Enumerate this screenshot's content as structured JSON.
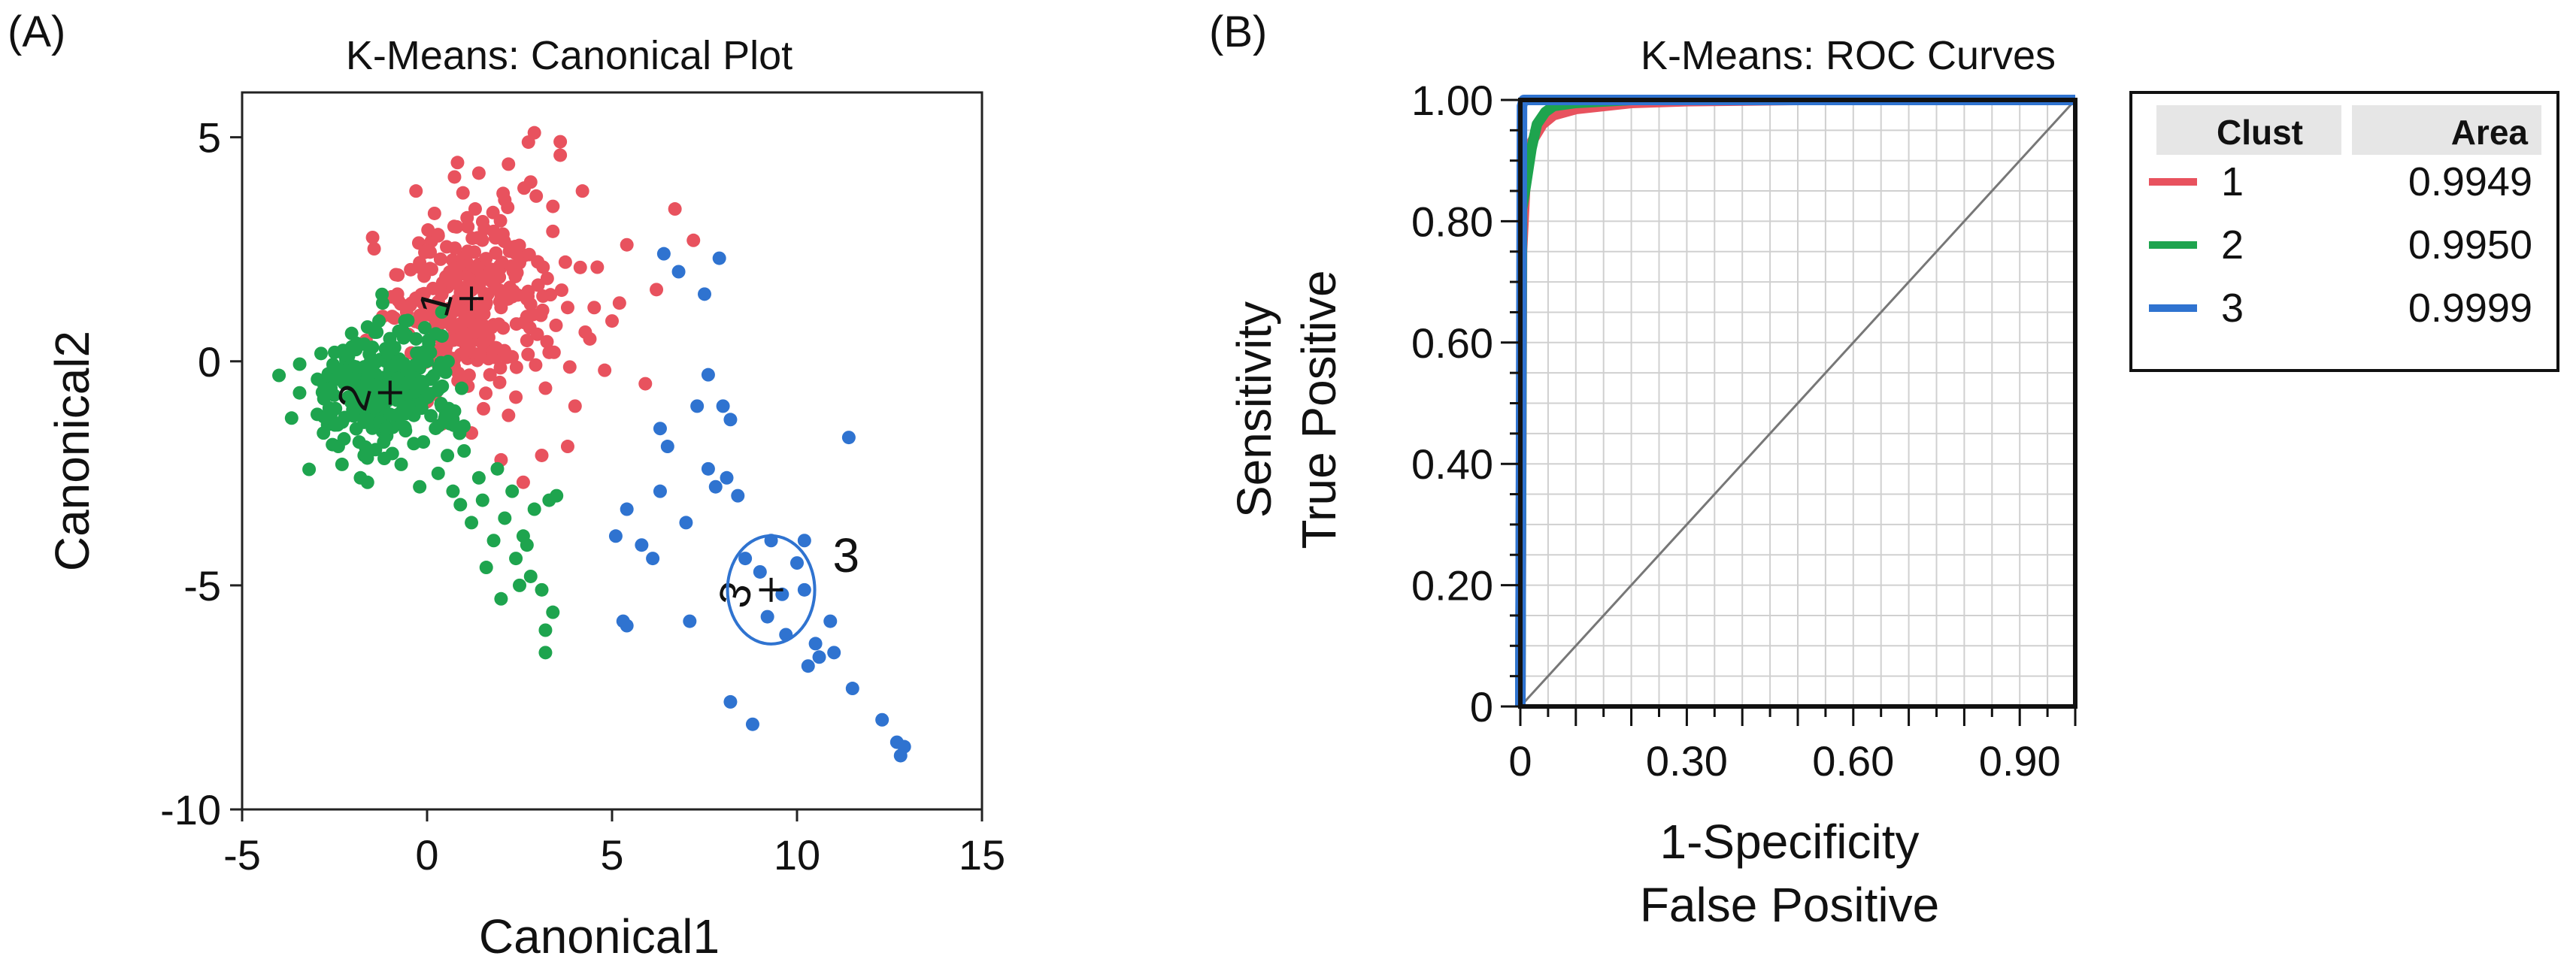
{
  "panels": {
    "a_label": "(A)",
    "b_label": "(B)",
    "label_color": "#1a2fa8"
  },
  "colors": {
    "cluster1": "#e8525e",
    "cluster2": "#1ea44e",
    "cluster3": "#2f73d0",
    "diagonal": "#777777"
  },
  "chart_data": [
    {
      "type": "scatter",
      "title": "K-Means: Canonical Plot",
      "xlabel": "Canonical1",
      "ylabel": "Canonical2",
      "xlim": [
        -5,
        15
      ],
      "ylim": [
        -10,
        6
      ],
      "xticks": [
        "-5",
        "0",
        "5",
        "10",
        "15"
      ],
      "yticks": [
        "5",
        "0",
        "-5",
        "-10"
      ],
      "grid": false,
      "series": [
        {
          "cluster": "1",
          "color": "#e8525e",
          "centroid": [
            1.2,
            1.4
          ],
          "points": [
            [
              -1.2,
              1.0
            ],
            [
              -0.8,
              1.5
            ],
            [
              -0.5,
              0.6
            ],
            [
              -0.2,
              2.2
            ],
            [
              0.1,
              1.2
            ],
            [
              0.3,
              2.8
            ],
            [
              0.5,
              0.2
            ],
            [
              0.6,
              1.8
            ],
            [
              0.8,
              3.0
            ],
            [
              1.0,
              0.9
            ],
            [
              1.1,
              2.4
            ],
            [
              1.3,
              3.4
            ],
            [
              1.5,
              0.4
            ],
            [
              1.6,
              1.9
            ],
            [
              1.8,
              2.9
            ],
            [
              2.0,
              1.2
            ],
            [
              2.1,
              3.6
            ],
            [
              2.3,
              0.1
            ],
            [
              2.5,
              2.2
            ],
            [
              2.7,
              1.0
            ],
            [
              2.8,
              4.0
            ],
            [
              3.0,
              1.7
            ],
            [
              3.2,
              -0.6
            ],
            [
              3.4,
              2.9
            ],
            [
              3.6,
              4.6
            ],
            [
              3.8,
              1.2
            ],
            [
              4.0,
              -1.0
            ],
            [
              4.2,
              3.8
            ],
            [
              4.4,
              0.5
            ],
            [
              4.6,
              2.1
            ],
            [
              2.9,
              5.1
            ],
            [
              3.6,
              4.9
            ],
            [
              0.0,
              -0.9
            ],
            [
              0.4,
              -1.4
            ],
            [
              1.2,
              -1.6
            ],
            [
              2.0,
              -2.2
            ],
            [
              2.6,
              -2.7
            ],
            [
              3.1,
              -2.1
            ],
            [
              3.8,
              -1.9
            ],
            [
              5.0,
              0.9
            ],
            [
              5.4,
              2.6
            ],
            [
              5.9,
              -0.5
            ],
            [
              6.2,
              1.6
            ],
            [
              6.7,
              3.4
            ],
            [
              7.2,
              2.7
            ],
            [
              0.2,
              3.3
            ],
            [
              -0.3,
              3.8
            ],
            [
              1.7,
              -0.3
            ],
            [
              2.4,
              -0.8
            ],
            [
              3.3,
              0.2
            ],
            [
              0.9,
              -0.4
            ],
            [
              4.8,
              -0.2
            ],
            [
              5.2,
              1.3
            ],
            [
              1.4,
              4.2
            ],
            [
              2.2,
              4.4
            ]
          ]
        },
        {
          "cluster": "2",
          "color": "#1ea44e",
          "centroid": [
            -1.0,
            -0.7
          ],
          "points": [
            [
              -2.8,
              -1.6
            ],
            [
              -2.6,
              -0.6
            ],
            [
              -2.4,
              -1.9
            ],
            [
              -2.2,
              -0.2
            ],
            [
              -2.0,
              -1.2
            ],
            [
              -1.9,
              0.4
            ],
            [
              -1.7,
              -2.1
            ],
            [
              -1.5,
              -0.8
            ],
            [
              -1.3,
              0.9
            ],
            [
              -1.1,
              -1.5
            ],
            [
              -0.9,
              -0.1
            ],
            [
              -0.7,
              -2.3
            ],
            [
              -0.5,
              -1.0
            ],
            [
              -0.3,
              0.5
            ],
            [
              -0.1,
              -1.8
            ],
            [
              0.1,
              -0.4
            ],
            [
              0.3,
              -2.5
            ],
            [
              0.5,
              -1.2
            ],
            [
              0.7,
              -2.9
            ],
            [
              0.9,
              -3.2
            ],
            [
              1.2,
              -3.6
            ],
            [
              1.5,
              -3.1
            ],
            [
              1.8,
              -4.0
            ],
            [
              2.1,
              -3.5
            ],
            [
              2.4,
              -4.4
            ],
            [
              2.6,
              -3.9
            ],
            [
              1.4,
              -2.6
            ],
            [
              1.9,
              -2.4
            ],
            [
              2.3,
              -2.9
            ],
            [
              2.9,
              -3.3
            ],
            [
              3.3,
              -3.1
            ],
            [
              2.8,
              -4.8
            ],
            [
              3.1,
              -5.1
            ],
            [
              3.4,
              -5.6
            ],
            [
              2.5,
              -5.0
            ],
            [
              3.2,
              -6.0
            ],
            [
              3.2,
              -6.5
            ],
            [
              -2.3,
              -2.3
            ],
            [
              -1.8,
              -2.6
            ],
            [
              -0.6,
              0.9
            ],
            [
              0.4,
              1.1
            ],
            [
              -1.2,
              1.3
            ],
            [
              -0.2,
              -2.8
            ],
            [
              -2.5,
              0.2
            ],
            [
              0.0,
              0.0
            ],
            [
              -1.6,
              -0.3
            ],
            [
              -0.4,
              -0.5
            ],
            [
              1.0,
              -2.0
            ],
            [
              1.6,
              -4.6
            ],
            [
              2.0,
              -5.3
            ],
            [
              2.7,
              -4.1
            ],
            [
              3.5,
              -3.0
            ]
          ]
        },
        {
          "cluster": "3",
          "color": "#2f73d0",
          "centroid": [
            9.3,
            -5.1
          ],
          "points": [
            [
              6.4,
              2.4
            ],
            [
              6.8,
              2.0
            ],
            [
              7.5,
              1.5
            ],
            [
              7.9,
              2.3
            ],
            [
              7.6,
              -0.3
            ],
            [
              8.0,
              -1.0
            ],
            [
              8.2,
              -1.3
            ],
            [
              7.3,
              -1.0
            ],
            [
              6.3,
              -1.5
            ],
            [
              6.5,
              -1.9
            ],
            [
              7.6,
              -2.4
            ],
            [
              8.1,
              -2.6
            ],
            [
              7.8,
              -2.8
            ],
            [
              8.4,
              -3.0
            ],
            [
              6.3,
              -2.9
            ],
            [
              7.0,
              -3.6
            ],
            [
              5.4,
              -3.3
            ],
            [
              5.1,
              -3.9
            ],
            [
              5.8,
              -4.1
            ],
            [
              6.1,
              -4.4
            ],
            [
              5.3,
              -5.8
            ],
            [
              5.4,
              -5.9
            ],
            [
              7.1,
              -5.8
            ],
            [
              8.6,
              -4.4
            ],
            [
              9.3,
              -4.0
            ],
            [
              9.0,
              -4.7
            ],
            [
              9.6,
              -5.2
            ],
            [
              10.2,
              -5.1
            ],
            [
              10.0,
              -4.5
            ],
            [
              9.2,
              -5.7
            ],
            [
              10.5,
              -6.3
            ],
            [
              10.6,
              -6.6
            ],
            [
              10.3,
              -6.8
            ],
            [
              11.0,
              -6.5
            ],
            [
              10.9,
              -5.8
            ],
            [
              8.2,
              -7.6
            ],
            [
              8.8,
              -8.1
            ],
            [
              11.4,
              -1.7
            ],
            [
              11.5,
              -7.3
            ],
            [
              12.3,
              -8.0
            ],
            [
              12.7,
              -8.5
            ],
            [
              12.9,
              -8.6
            ],
            [
              12.8,
              -8.8
            ],
            [
              10.2,
              -4.0
            ],
            [
              9.7,
              -6.1
            ]
          ]
        }
      ],
      "cluster_labels": [
        "1",
        "2",
        "3"
      ]
    },
    {
      "type": "line",
      "title": "K-Means: ROC Curves",
      "xlabel_line1": "1-Specificity",
      "xlabel_line2": "False Positive",
      "ylabel_line1": "Sensitivity",
      "ylabel_line2": "True Positive",
      "xlim": [
        0,
        1
      ],
      "ylim": [
        0,
        1
      ],
      "xticks": [
        "0",
        "0.30",
        "0.60",
        "0.90"
      ],
      "xtick_values": [
        0,
        0.3,
        0.6,
        0.9
      ],
      "yticks": [
        "1.00",
        "0.80",
        "0.60",
        "0.40",
        "0.20",
        "0"
      ],
      "ytick_values": [
        1.0,
        0.8,
        0.6,
        0.4,
        0.2,
        0
      ],
      "grid": true,
      "legend_placement": "right",
      "legend": {
        "header_clust": "Clust",
        "header_area": "Area",
        "rows": [
          {
            "clust": "1",
            "area": "0.9949",
            "color": "#e8525e"
          },
          {
            "clust": "2",
            "area": "0.9950",
            "color": "#1ea44e"
          },
          {
            "clust": "3",
            "area": "0.9999",
            "color": "#2f73d0"
          }
        ]
      },
      "series": [
        {
          "clust": "1",
          "color": "#e8525e",
          "x": [
            0,
            0.003,
            0.01,
            0.02,
            0.04,
            0.06,
            0.1,
            0.15,
            0.2,
            0.3,
            0.5,
            1.0
          ],
          "y": [
            0,
            0.75,
            0.88,
            0.93,
            0.96,
            0.975,
            0.985,
            0.99,
            0.995,
            0.998,
            1.0,
            1.0
          ]
        },
        {
          "clust": "2",
          "color": "#1ea44e",
          "x": [
            0,
            0.003,
            0.01,
            0.02,
            0.03,
            0.045,
            0.06,
            0.1,
            0.2,
            1.0
          ],
          "y": [
            0,
            0.82,
            0.86,
            0.92,
            0.96,
            0.98,
            0.99,
            0.995,
            1.0,
            1.0
          ]
        },
        {
          "clust": "3",
          "color": "#2f73d0",
          "x": [
            0,
            0.003,
            0.006,
            0.01,
            1.0
          ],
          "y": [
            0,
            0.99,
            1.0,
            1.0,
            1.0
          ]
        }
      ]
    }
  ]
}
